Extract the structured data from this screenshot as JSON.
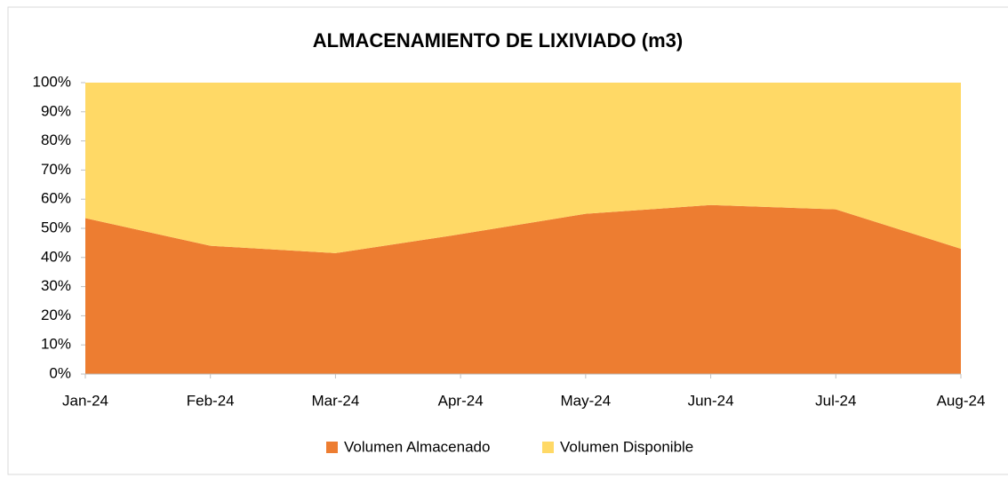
{
  "chart_data": {
    "type": "stacked_area",
    "title": "ALMACENAMIENTO DE LIXIVIADO (m3)",
    "categories": [
      "Jan-24",
      "Feb-24",
      "Mar-24",
      "Apr-24",
      "May-24",
      "Jun-24",
      "Jul-24",
      "Aug-24"
    ],
    "series": [
      {
        "name": "Volumen Almacenado",
        "color": "#ed7d31",
        "values": [
          53.5,
          44,
          41.5,
          48,
          55,
          58,
          56.5,
          43
        ]
      },
      {
        "name": "Volumen Disponible",
        "color": "#ffd966",
        "values": [
          46.5,
          56,
          58.5,
          52,
          45,
          42,
          43.5,
          57
        ]
      }
    ],
    "ylim": [
      0,
      100
    ],
    "yticks": [
      {
        "value": 0,
        "label": "0%"
      },
      {
        "value": 10,
        "label": "10%"
      },
      {
        "value": 20,
        "label": "20%"
      },
      {
        "value": 30,
        "label": "30%"
      },
      {
        "value": 40,
        "label": "40%"
      },
      {
        "value": 50,
        "label": "50%"
      },
      {
        "value": 60,
        "label": "60%"
      },
      {
        "value": 70,
        "label": "70%"
      },
      {
        "value": 80,
        "label": "80%"
      },
      {
        "value": 90,
        "label": "90%"
      },
      {
        "value": 100,
        "label": "100%"
      }
    ],
    "legend": "bottom"
  }
}
